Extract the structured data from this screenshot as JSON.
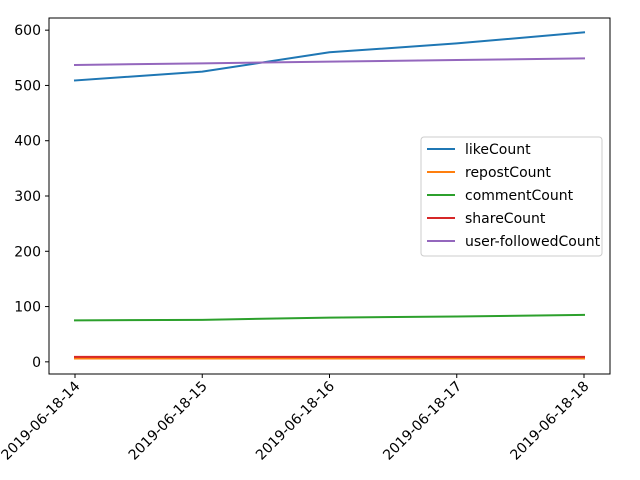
{
  "chart_data": {
    "type": "line",
    "title": "",
    "xlabel": "",
    "ylabel": "",
    "categories": [
      "2019-06-18-14",
      "2019-06-18-15",
      "2019-06-18-16",
      "2019-06-18-17",
      "2019-06-18-18"
    ],
    "ylim": [
      -22,
      622
    ],
    "yticks": [
      0,
      100,
      200,
      300,
      400,
      500,
      600
    ],
    "x_tick_rotation_deg": 45,
    "grid": false,
    "legend_position": "center-right",
    "series": [
      {
        "name": "likeCount",
        "color": "#1f77b4",
        "values": [
          509,
          525,
          560,
          576,
          596
        ]
      },
      {
        "name": "repostCount",
        "color": "#ff7f0e",
        "values": [
          6,
          6,
          6,
          6,
          6
        ]
      },
      {
        "name": "commentCount",
        "color": "#2ca02c",
        "values": [
          75,
          76,
          80,
          82,
          85
        ]
      },
      {
        "name": "shareCount",
        "color": "#d62728",
        "values": [
          9,
          9,
          9,
          9,
          9
        ]
      },
      {
        "name": "user-followedCount",
        "color": "#9467bd",
        "values": [
          537,
          540,
          543,
          546,
          549
        ]
      }
    ]
  }
}
